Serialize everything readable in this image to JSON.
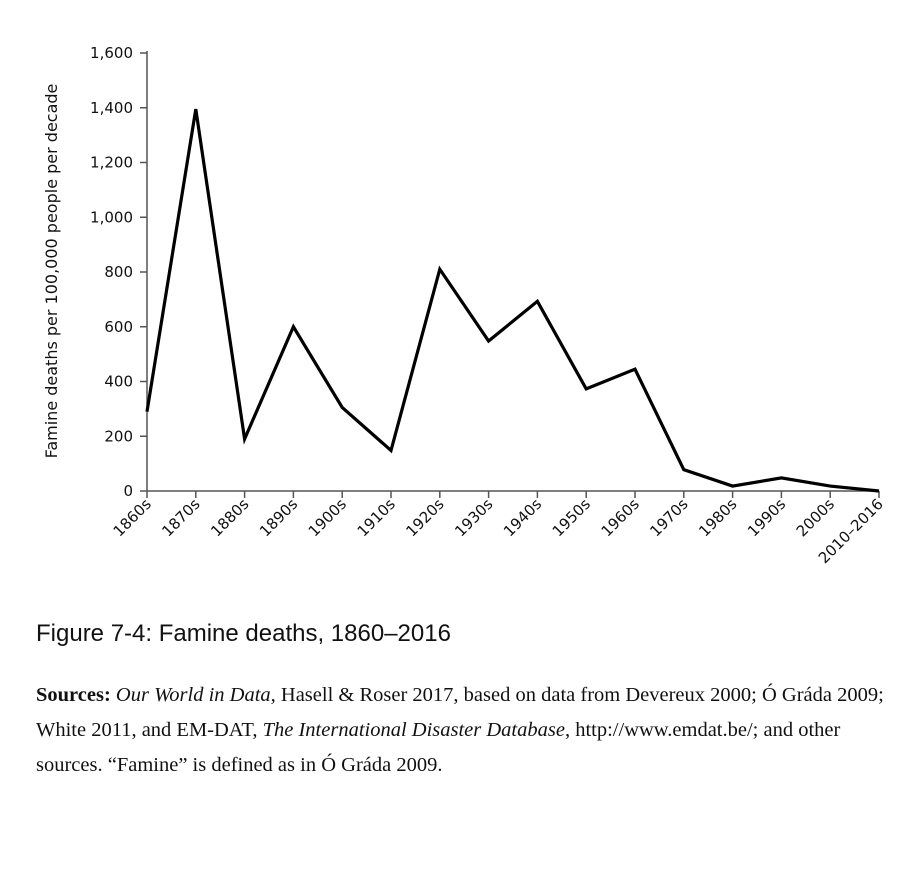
{
  "chart_data": {
    "type": "line",
    "title": "",
    "xlabel": "",
    "ylabel": "Famine deaths per 100,000 people per decade",
    "ylim": [
      0,
      1600
    ],
    "yticks": [
      0,
      200,
      400,
      600,
      800,
      1000,
      1200,
      1400,
      1600
    ],
    "ytick_labels": [
      "0",
      "200",
      "400",
      "600",
      "800",
      "1,000",
      "1,200",
      "1,400",
      "1,600"
    ],
    "categories": [
      "1860s",
      "1870s",
      "1880s",
      "1890s",
      "1900s",
      "1910s",
      "1920s",
      "1930s",
      "1940s",
      "1950s",
      "1960s",
      "1970s",
      "1980s",
      "1990s",
      "2000s",
      "2010–2016"
    ],
    "series": [
      {
        "values": [
          290,
          1395,
          190,
          600,
          305,
          148,
          810,
          548,
          693,
          373,
          445,
          78,
          18,
          48,
          18,
          0
        ]
      }
    ],
    "grid": false,
    "legend": "none",
    "line_color": "#000000"
  },
  "caption": {
    "figure": "Figure 7-4: Famine deaths, 1860–2016"
  },
  "sources": {
    "label": "Sources:",
    "part1": "Our World in Data,",
    "part2": " Hasell & Roser 2017, based on data from Devereux 2000; Ó Gráda 2009; White 2011, and EM-DAT, ",
    "part3": "The International Disaster Data­base",
    "part4": ", http://www.emdat.be/; and other sources. “Famine” is defined as in Ó Gráda 2009."
  }
}
